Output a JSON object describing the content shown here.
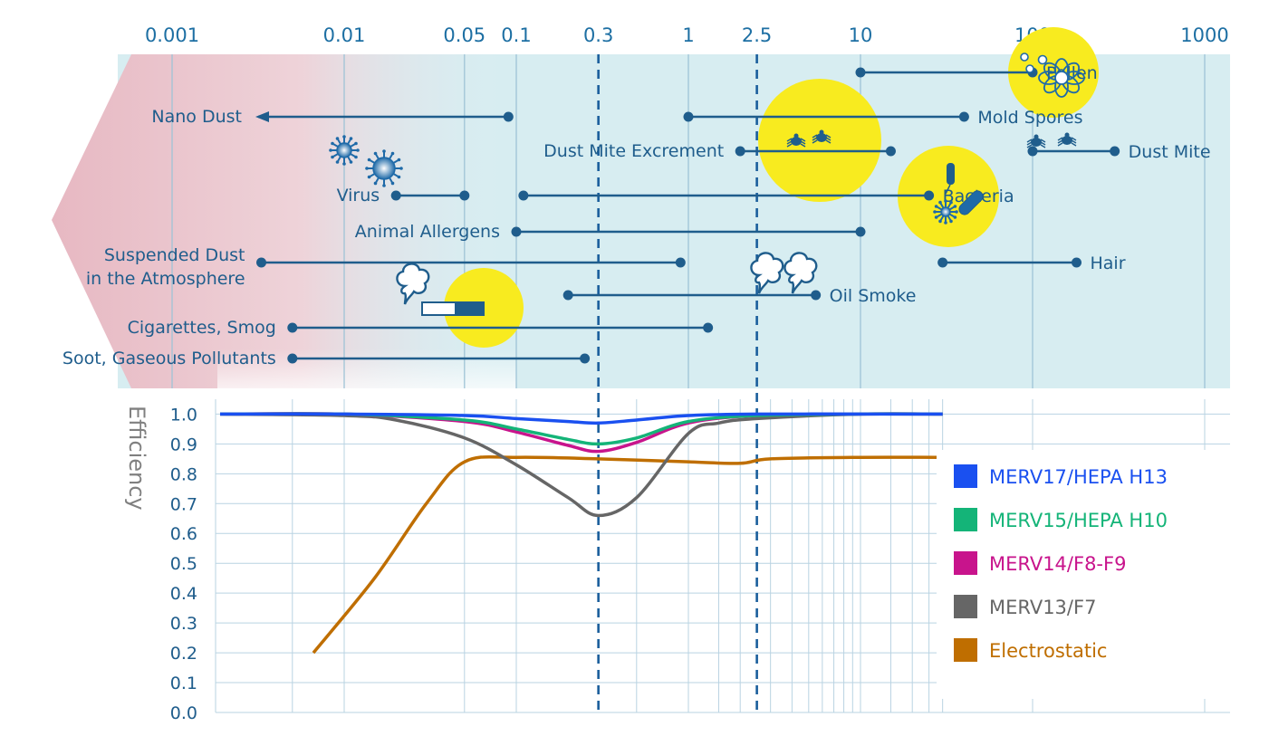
{
  "chart_data": [
    {
      "type": "range",
      "x_scale": "log",
      "x_unit": "μm",
      "x_tick_labels": [
        "0.001",
        "0.01",
        "0.05",
        "0.1",
        "0.3",
        "1",
        "2.5",
        "10",
        "100",
        "1000"
      ],
      "x_ticks": [
        0.001,
        0.01,
        0.05,
        0.1,
        0.3,
        1,
        2.5,
        10,
        100,
        1000
      ],
      "reference_lines": [
        0.3,
        2.5
      ],
      "particles": [
        {
          "label": "Pollen",
          "from": 10,
          "to": 100,
          "icon": "pollen-icon"
        },
        {
          "label": "Nano Dust",
          "from": 0.0001,
          "to": 0.09,
          "arrow": "left"
        },
        {
          "label": "Mold Spores",
          "from": 1,
          "to": 40
        },
        {
          "label": "Dust Mite Excrement",
          "from": 2,
          "to": 15,
          "icon": "mite-icon"
        },
        {
          "label": "Dust Mite",
          "from": 100,
          "to": 300,
          "icon": "mite-icon"
        },
        {
          "label": "Virus",
          "from": 0.02,
          "to": 0.05,
          "icon": "virus-icon"
        },
        {
          "label": "Bacteria",
          "from": 0.11,
          "to": 25,
          "icon": "bacteria-icon"
        },
        {
          "label": "Animal Allergens",
          "from": 0.1,
          "to": 10
        },
        {
          "label": "Suspended Dust",
          "label2": "in the Atmosphere",
          "from": 0.0033,
          "to": 0.9
        },
        {
          "label": "Hair",
          "from": 30,
          "to": 180
        },
        {
          "label": "Oil Smoke",
          "from": 0.2,
          "to": 5.5,
          "icon": "smoke-icon"
        },
        {
          "label": "Cigarettes, Smog",
          "from": 0.005,
          "to": 1.3,
          "icon": "cigarette-icon"
        },
        {
          "label": "Soot, Gaseous Pollutants",
          "from": 0.005,
          "to": 0.25
        }
      ]
    },
    {
      "type": "line",
      "ylabel": "Efficiency",
      "ylim": [
        0,
        1
      ],
      "y_ticks": [
        "0.0",
        "0.1",
        "0.2",
        "0.3",
        "0.4",
        "0.5",
        "0.6",
        "0.7",
        "0.8",
        "0.9",
        "1.0"
      ],
      "x_scale": "log",
      "legend_position": "bottom-right",
      "series": [
        {
          "name": "MERV17/HEPA H13",
          "color": "#1a50f0",
          "x": [
            0.001,
            0.01,
            0.05,
            0.1,
            0.2,
            0.3,
            0.5,
            1,
            2.5,
            10,
            30
          ],
          "y": [
            1.0,
            1.0,
            0.995,
            0.985,
            0.975,
            0.97,
            0.98,
            0.995,
            1.0,
            1.0,
            1.0
          ]
        },
        {
          "name": "MERV15/HEPA H10",
          "color": "#14b478",
          "x": [
            0.001,
            0.01,
            0.05,
            0.1,
            0.2,
            0.3,
            0.5,
            1,
            2.5,
            10,
            30
          ],
          "y": [
            1.0,
            1.0,
            0.98,
            0.95,
            0.915,
            0.9,
            0.92,
            0.975,
            0.995,
            1.0,
            1.0
          ]
        },
        {
          "name": "MERV14/F8-F9",
          "color": "#c8148c",
          "x": [
            0.001,
            0.01,
            0.05,
            0.1,
            0.2,
            0.3,
            0.5,
            1,
            2.5,
            10,
            30
          ],
          "y": [
            1.0,
            1.0,
            0.975,
            0.94,
            0.895,
            0.875,
            0.905,
            0.97,
            0.995,
            1.0,
            1.0
          ]
        },
        {
          "name": "MERV13/F7",
          "color": "#666666",
          "x": [
            0.001,
            0.01,
            0.02,
            0.05,
            0.1,
            0.2,
            0.3,
            0.5,
            1,
            1.5,
            2.5,
            10,
            30
          ],
          "y": [
            1.0,
            0.995,
            0.98,
            0.92,
            0.83,
            0.72,
            0.66,
            0.72,
            0.935,
            0.97,
            0.985,
            1.0,
            1.0
          ]
        },
        {
          "name": "Electrostatic",
          "color": "#bf6e00",
          "x": [
            0.008,
            0.015,
            0.03,
            0.05,
            0.1,
            0.3,
            1,
            2,
            3,
            10,
            30
          ],
          "y": [
            0.2,
            0.45,
            0.7,
            0.84,
            0.855,
            0.85,
            0.84,
            0.835,
            0.85,
            0.855,
            0.855
          ]
        }
      ]
    }
  ]
}
